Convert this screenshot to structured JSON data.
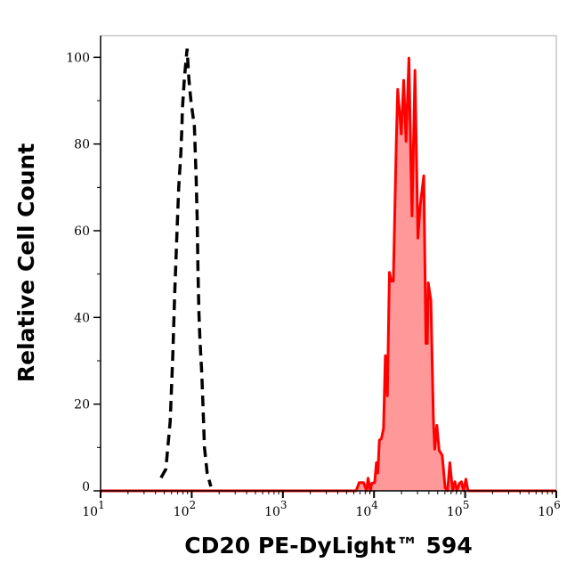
{
  "chart_data": {
    "type": "area",
    "title": "",
    "xlabel": "CD20 PE-DyLight™ 594",
    "ylabel": "Relative Cell Count",
    "xscale": "log",
    "xlim": [
      10,
      1000000
    ],
    "ylim": [
      0,
      105
    ],
    "x_ticks": [
      10,
      100,
      1000,
      10000,
      100000,
      1000000
    ],
    "x_tick_labels": [
      {
        "base": "10",
        "exp": "1"
      },
      {
        "base": "10",
        "exp": "2"
      },
      {
        "base": "10",
        "exp": "3"
      },
      {
        "base": "10",
        "exp": "4"
      },
      {
        "base": "10",
        "exp": "5"
      },
      {
        "base": "10",
        "exp": "6"
      }
    ],
    "y_ticks": [
      0,
      20,
      40,
      60,
      80,
      100
    ],
    "y_tick_labels": [
      "0",
      "20",
      "40",
      "60",
      "80",
      "100"
    ],
    "grid": false,
    "series": [
      {
        "style": "dashed-line",
        "color": "#000000",
        "x": [
          46,
          52,
          58,
          62,
          65,
          69,
          72,
          76,
          78,
          79,
          83,
          89,
          93,
          98,
          107,
          112,
          115,
          117,
          120,
          123,
          129,
          135,
          138,
          148,
          162
        ],
        "y": [
          3,
          5,
          16,
          31,
          45,
          60,
          70,
          78,
          84,
          88,
          95,
          102,
          95,
          90,
          84,
          72,
          62,
          51,
          41,
          35,
          27,
          16,
          10,
          4,
          1
        ]
      },
      {
        "style": "filled-line",
        "color": "#ff0000",
        "fill": "#ff9999",
        "x": [
          10,
          6380,
          6870,
          7690,
          8300,
          8610,
          9140,
          9420,
          10170,
          10620,
          11020,
          11450,
          12050,
          12710,
          13300,
          14000,
          14750,
          15420,
          16280,
          17540,
          18200,
          19950,
          21140,
          22450,
          24160,
          25520,
          26120,
          28120,
          30290,
          32150,
          35160,
          37070,
          38460,
          39360,
          42070,
          44770,
          46350,
          48950,
          51880,
          55980,
          60260,
          64090,
          67950,
          72770,
          77290,
          81310,
          86450,
          91010,
          95990,
          101800,
          107400,
          1000000
        ],
        "y": [
          0,
          0,
          1.9,
          1.9,
          0,
          2.9,
          0,
          1.7,
          1.9,
          6.5,
          4.1,
          11.7,
          12.0,
          14.4,
          31.2,
          21.9,
          50.4,
          48.4,
          48.4,
          80.2,
          92.6,
          82.3,
          94.7,
          80.6,
          99.8,
          72.7,
          63.4,
          97.0,
          58.3,
          65.8,
          72.7,
          34.0,
          34.0,
          48.0,
          43.9,
          16.5,
          9.6,
          15.1,
          9.3,
          8.2,
          0.7,
          0,
          6.5,
          0,
          2.1,
          0,
          1.7,
          2.1,
          0,
          2.7,
          0,
          0
        ]
      }
    ]
  }
}
